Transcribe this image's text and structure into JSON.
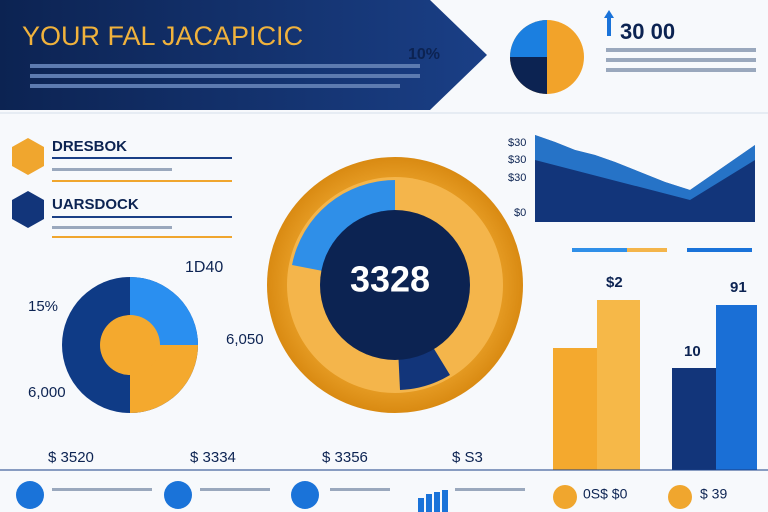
{
  "header": {
    "title": "YOUR FAL JACAPICIC",
    "badge": "10%"
  },
  "top_right": {
    "value": "30 00"
  },
  "items": [
    {
      "label": "DRESBOK"
    },
    {
      "label": "UARSDOCK"
    }
  ],
  "donut": {
    "value": "3328"
  },
  "left_pie": {
    "labels": [
      "1D40",
      "15%",
      "6,000",
      "6,050"
    ]
  },
  "area_chart": {
    "labels": [
      "$30",
      "$30",
      "$30",
      "$0"
    ]
  },
  "bar_chart": {
    "labels": [
      "$2",
      "91",
      "10"
    ]
  },
  "footer": {
    "values": [
      "$ 3520",
      "$ 3334",
      "$ 3356",
      "$ S3"
    ],
    "extra": [
      "0S$ $0",
      "$ 39"
    ]
  }
}
